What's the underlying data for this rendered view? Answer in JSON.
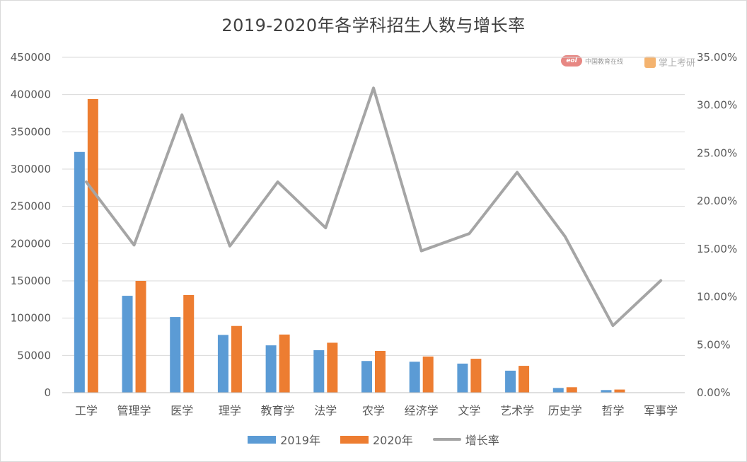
{
  "chart_data": {
    "type": "bar",
    "title": "2019-2020年各学科招生人数与增长率",
    "categories": [
      "工学",
      "管理学",
      "医学",
      "理学",
      "教育学",
      "法学",
      "农学",
      "经济学",
      "文学",
      "艺术学",
      "历史学",
      "哲学",
      "军事学"
    ],
    "series": [
      {
        "name": "2019年",
        "type": "bar",
        "axis": "left",
        "color": "#5b9bd5",
        "values": [
          323000,
          130000,
          101500,
          77500,
          63500,
          57000,
          42500,
          41500,
          39000,
          29500,
          6300,
          3500,
          0
        ]
      },
      {
        "name": "2020年",
        "type": "bar",
        "axis": "left",
        "color": "#ed7d31",
        "values": [
          394000,
          150000,
          131000,
          89500,
          78000,
          67000,
          56000,
          48500,
          45500,
          36000,
          7300,
          4200,
          0
        ]
      },
      {
        "name": "增长率",
        "type": "line",
        "axis": "right",
        "color": "#a5a5a5",
        "values": [
          0.22,
          0.154,
          0.29,
          0.153,
          0.22,
          0.172,
          0.318,
          0.148,
          0.166,
          0.23,
          0.163,
          0.07,
          0.117
        ]
      }
    ],
    "ylim": [
      0,
      450000
    ],
    "yticks": [
      "450000",
      "400000",
      "350000",
      "300000",
      "250000",
      "200000",
      "150000",
      "100000",
      "50000",
      "0"
    ],
    "y2lim": [
      0,
      0.35
    ],
    "y2ticks": [
      "35.00%",
      "30.00%",
      "25.00%",
      "20.00%",
      "15.00%",
      "10.00%",
      "5.00%",
      "0.00%"
    ],
    "grid": true,
    "legend_position": "bottom"
  },
  "watermarks": [
    {
      "text": "中国教育在线",
      "icon": "eol-logo"
    },
    {
      "text": "掌上考研",
      "icon": "zskyan-logo"
    }
  ]
}
